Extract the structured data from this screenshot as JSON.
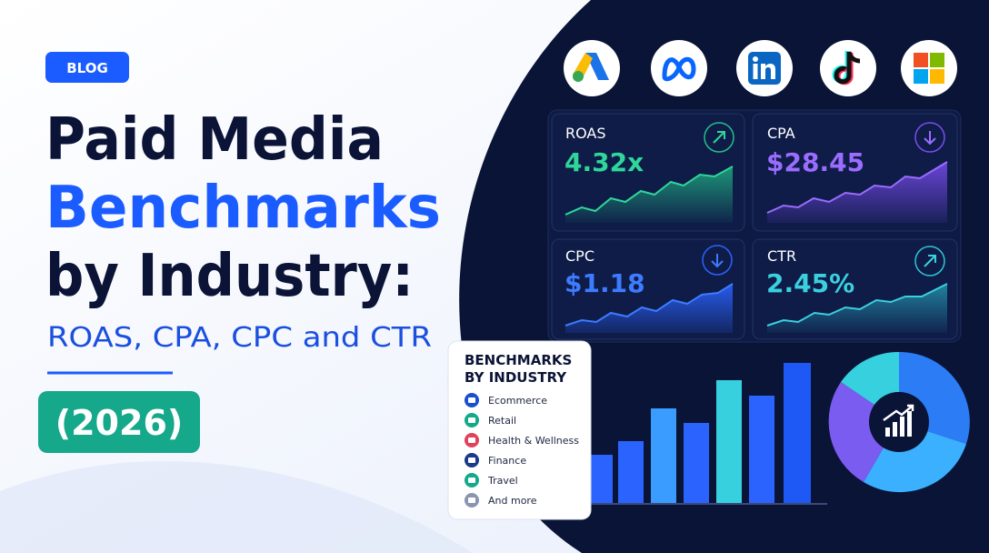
{
  "badge": "BLOG",
  "title": {
    "lines": [
      "Paid Media",
      "Benchmarks",
      "by Industry:"
    ]
  },
  "subtitle": "ROAS, CPA, CPC and CTR",
  "year": "(2026)",
  "metrics": [
    {
      "label": "ROAS",
      "value": "4.32x"
    },
    {
      "label": "CPA",
      "value": "$28.45"
    },
    {
      "label": "CPC",
      "value": "$1.18"
    },
    {
      "label": "CTR",
      "value": "2.45%"
    }
  ],
  "industry_panel": {
    "title_lines": [
      "BENCHMARKS",
      "BY INDUSTRY"
    ],
    "items": [
      "Ecommerce",
      "Retail",
      "Health & Wellness",
      "Finance",
      "Travel",
      "And more"
    ]
  }
}
